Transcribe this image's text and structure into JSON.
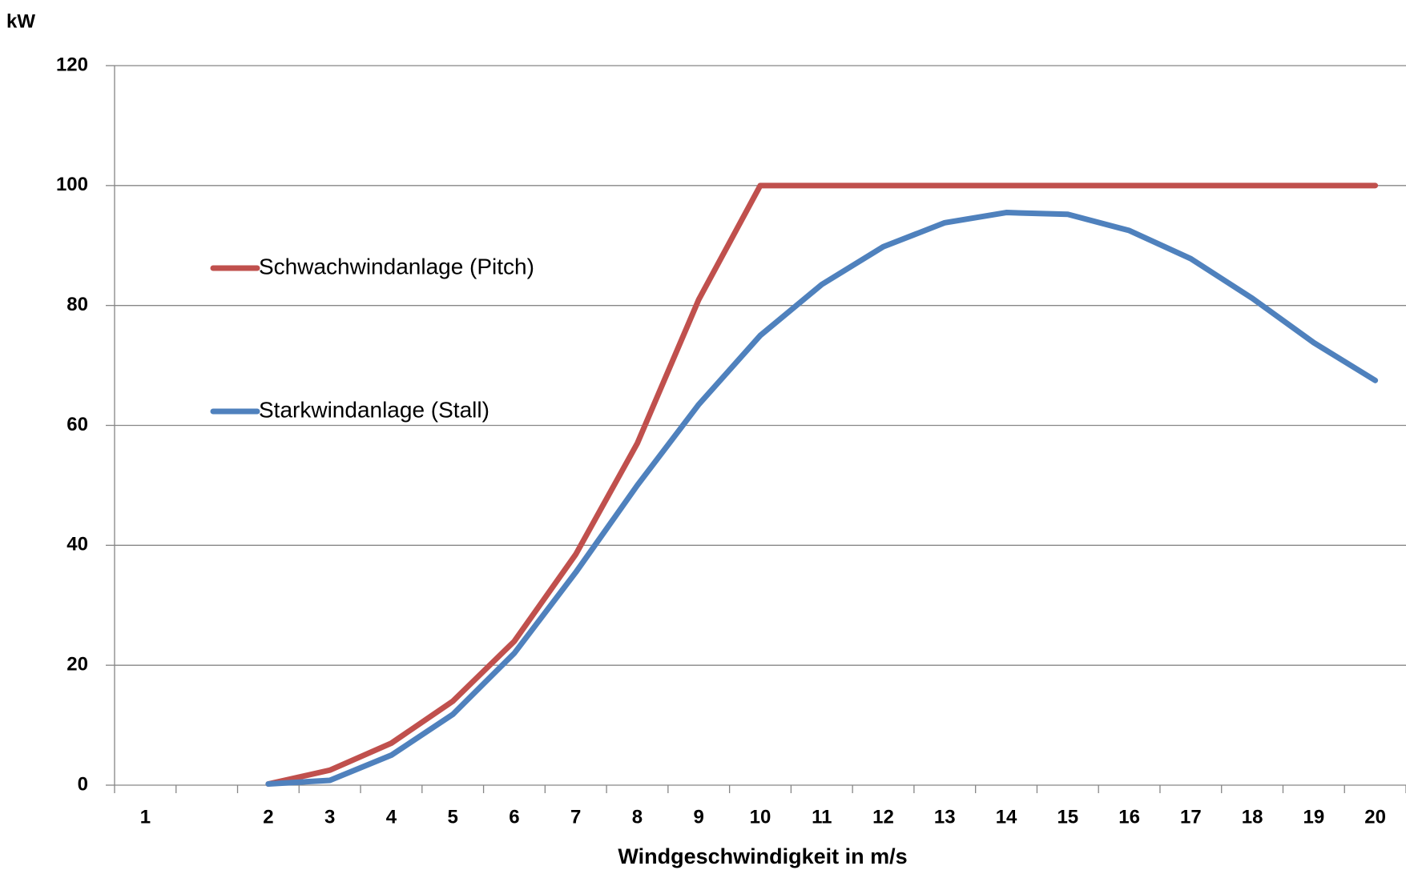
{
  "chart_data": {
    "type": "line",
    "y_label": "kW",
    "x_label": "Windgeschwindigkeit in m/s",
    "categories": [
      "1",
      null,
      "2",
      "3",
      "4",
      "5",
      "6",
      "7",
      "8",
      "9",
      "10",
      "11",
      "12",
      "13",
      "14",
      "15",
      "16",
      "17",
      "18",
      "19",
      "20"
    ],
    "series": [
      {
        "name": "Schwachwindanlage (Pitch)",
        "color": "#c0504d",
        "values": [
          null,
          null,
          0.2,
          2.5,
          7,
          14,
          24,
          38.5,
          57,
          81,
          100,
          100,
          100,
          100,
          100,
          100,
          100,
          100,
          100,
          100,
          100
        ]
      },
      {
        "name": "Starkwindanlage (Stall)",
        "color": "#4f81bd",
        "values": [
          null,
          null,
          0.2,
          0.8,
          5,
          11.8,
          22,
          35.5,
          50,
          63.5,
          75,
          83.5,
          89.8,
          93.8,
          95.5,
          95.2,
          92.5,
          87.8,
          81.2,
          73.8,
          67.5
        ]
      }
    ],
    "ylim": [
      0,
      120
    ],
    "yticks": [
      0,
      20,
      40,
      60,
      80,
      100,
      120
    ],
    "grid": true,
    "legend": "left"
  }
}
